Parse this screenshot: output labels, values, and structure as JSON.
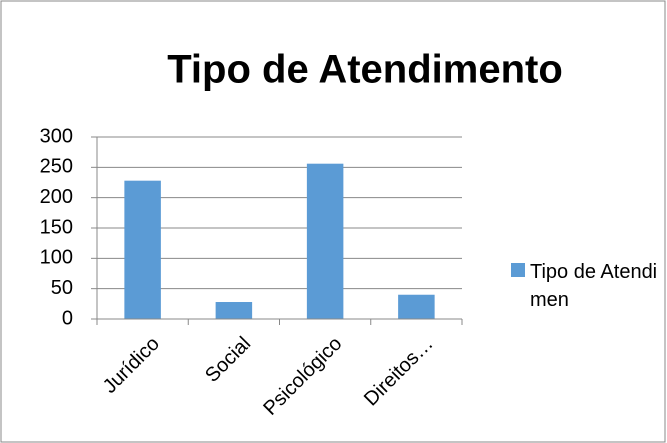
{
  "chart_data": {
    "type": "bar",
    "title": "Tipo de Atendimento",
    "categories": [
      "Jurídico",
      "Social",
      "Psicológico",
      "Direitos…"
    ],
    "series": [
      {
        "name": "Tipo de Atendimen",
        "color": "#5b9bd5",
        "values": [
          228,
          28,
          256,
          40
        ]
      }
    ],
    "ylim": [
      0,
      300
    ],
    "yticks": [
      0,
      50,
      100,
      150,
      200,
      250,
      300
    ],
    "grid": true,
    "legend": "right"
  }
}
